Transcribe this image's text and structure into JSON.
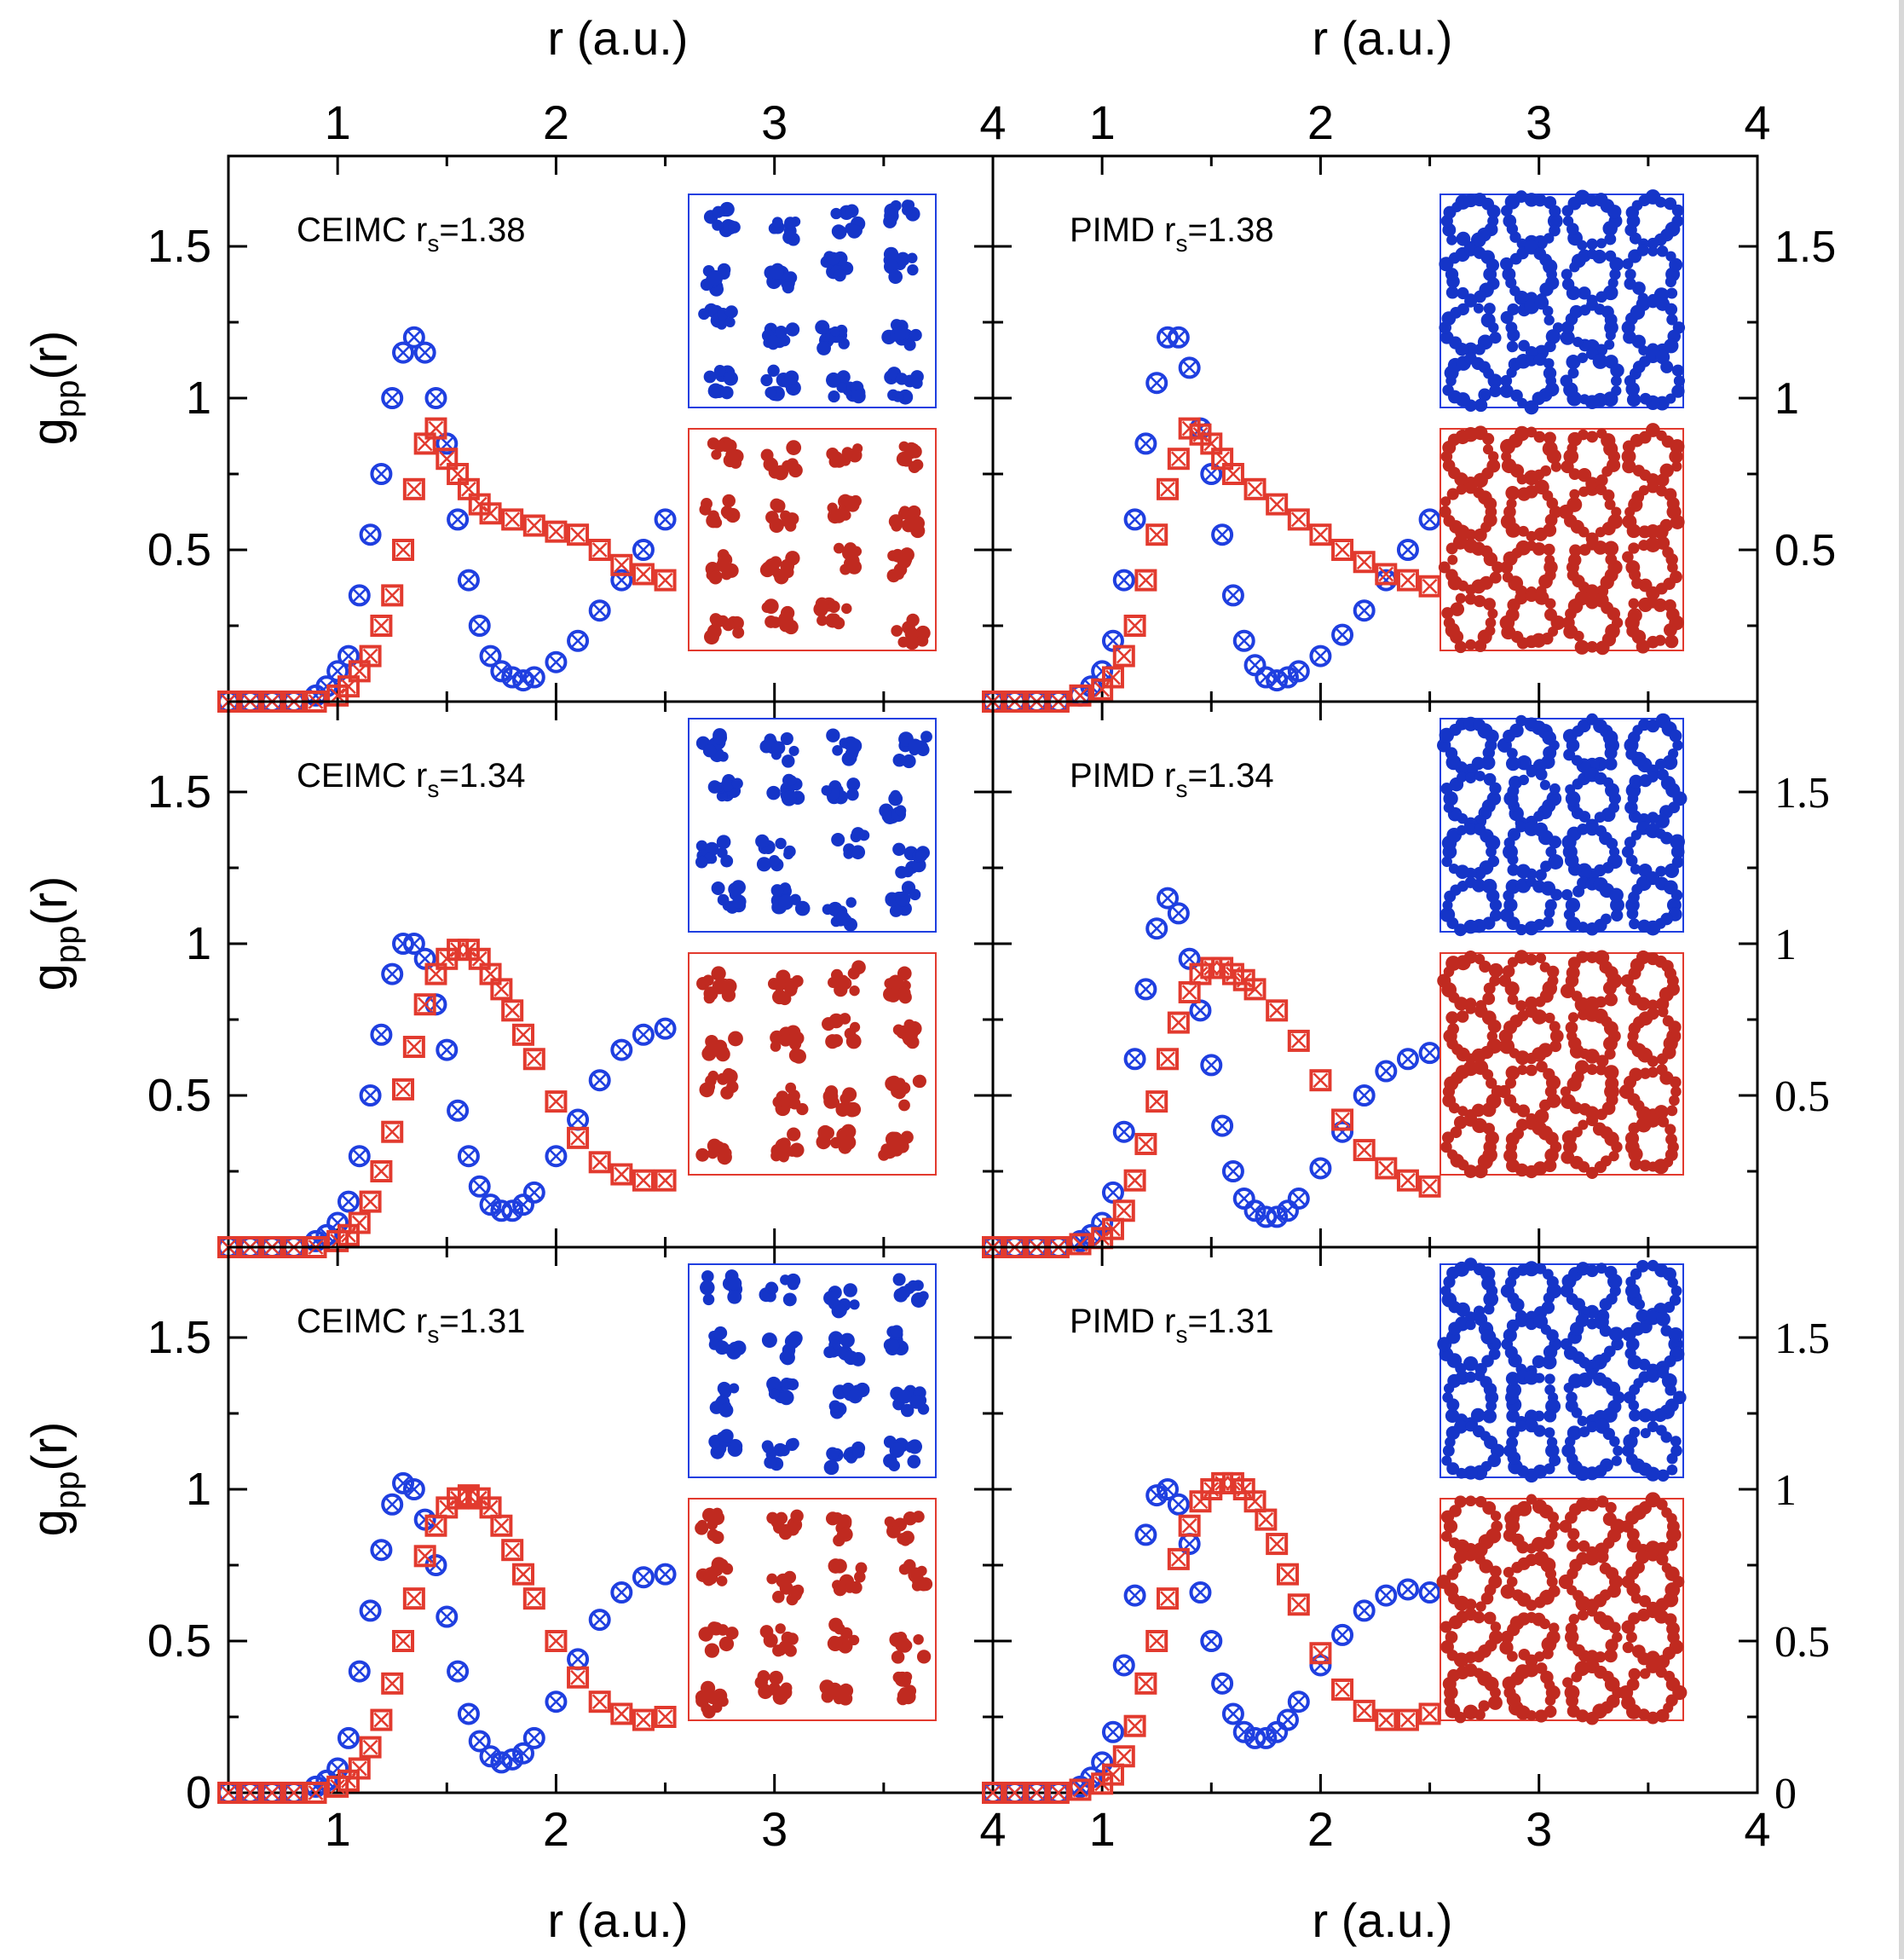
{
  "figure": {
    "top_axis_label": "r (a.u.)",
    "bottom_axis_label": "r (a.u.)",
    "left_axis_label_main": "g",
    "left_axis_label_sub": "pp",
    "left_axis_label_tail": "(r)",
    "colors": {
      "blue": "#1f3fe0",
      "red": "#e23a2e",
      "blue_inset": "#1535c8",
      "red_inset": "#c02a20",
      "frame": "#000000"
    }
  },
  "chart_data": [
    {
      "id": "ceimc-138",
      "type": "scatter",
      "label_main": "CEIMC r",
      "label_sub": "s",
      "label_tail": "=1.38",
      "xlim": [
        0.5,
        4.0
      ],
      "ylim": [
        0,
        1.6
      ],
      "xticks": [
        "1",
        "2",
        "3",
        "4"
      ],
      "yticks": [
        "0.5",
        "1",
        "1.5"
      ],
      "inset_layout": "grid",
      "series": [
        {
          "marker": "circle",
          "color": "#1f3fe0",
          "x": [
            0.5,
            0.6,
            0.7,
            0.8,
            0.9,
            0.95,
            1.0,
            1.05,
            1.1,
            1.15,
            1.2,
            1.25,
            1.3,
            1.35,
            1.4,
            1.45,
            1.5,
            1.55,
            1.6,
            1.65,
            1.7,
            1.75,
            1.8,
            1.85,
            1.9,
            2.0,
            2.1,
            2.2,
            2.3,
            2.4,
            2.5
          ],
          "y": [
            0,
            0,
            0,
            0,
            0.02,
            0.05,
            0.1,
            0.15,
            0.35,
            0.55,
            0.75,
            1.0,
            1.15,
            1.2,
            1.15,
            1.0,
            0.85,
            0.6,
            0.4,
            0.25,
            0.15,
            0.1,
            0.08,
            0.07,
            0.08,
            0.13,
            0.2,
            0.3,
            0.4,
            0.5,
            0.6
          ]
        },
        {
          "marker": "square",
          "color": "#e23a2e",
          "x": [
            0.5,
            0.6,
            0.7,
            0.8,
            0.9,
            1.0,
            1.05,
            1.1,
            1.15,
            1.2,
            1.25,
            1.3,
            1.35,
            1.4,
            1.45,
            1.5,
            1.55,
            1.6,
            1.65,
            1.7,
            1.8,
            1.9,
            2.0,
            2.1,
            2.2,
            2.3,
            2.4,
            2.5
          ],
          "y": [
            0,
            0,
            0,
            0,
            0,
            0.02,
            0.05,
            0.1,
            0.15,
            0.25,
            0.35,
            0.5,
            0.7,
            0.85,
            0.9,
            0.8,
            0.75,
            0.7,
            0.65,
            0.62,
            0.6,
            0.58,
            0.56,
            0.55,
            0.5,
            0.45,
            0.42,
            0.4
          ]
        }
      ]
    },
    {
      "id": "pimd-138",
      "type": "scatter",
      "label_main": "PIMD r",
      "label_sub": "s",
      "label_tail": "=1.38",
      "xlim": [
        0.5,
        4.0
      ],
      "ylim": [
        0,
        1.6
      ],
      "xticks": [
        "1",
        "2",
        "3",
        "4"
      ],
      "yticks": [
        "0.5",
        "1",
        "1.5"
      ],
      "inset_layout": "rings",
      "series": [
        {
          "marker": "circle",
          "color": "#1f3fe0",
          "x": [
            0.5,
            0.6,
            0.7,
            0.8,
            0.9,
            0.95,
            1.0,
            1.05,
            1.1,
            1.15,
            1.2,
            1.25,
            1.3,
            1.35,
            1.4,
            1.45,
            1.5,
            1.55,
            1.6,
            1.65,
            1.7,
            1.75,
            1.8,
            1.85,
            1.9,
            2.0,
            2.1,
            2.2,
            2.3,
            2.4,
            2.5
          ],
          "y": [
            0,
            0,
            0,
            0,
            0.02,
            0.05,
            0.1,
            0.2,
            0.4,
            0.6,
            0.85,
            1.05,
            1.2,
            1.2,
            1.1,
            0.9,
            0.75,
            0.55,
            0.35,
            0.2,
            0.12,
            0.08,
            0.07,
            0.08,
            0.1,
            0.15,
            0.22,
            0.3,
            0.4,
            0.5,
            0.6
          ]
        },
        {
          "marker": "square",
          "color": "#e23a2e",
          "x": [
            0.5,
            0.6,
            0.7,
            0.8,
            0.9,
            1.0,
            1.05,
            1.1,
            1.15,
            1.2,
            1.25,
            1.3,
            1.35,
            1.4,
            1.45,
            1.5,
            1.55,
            1.6,
            1.7,
            1.8,
            1.9,
            2.0,
            2.1,
            2.2,
            2.3,
            2.4,
            2.5
          ],
          "y": [
            0,
            0,
            0,
            0,
            0.02,
            0.04,
            0.08,
            0.15,
            0.25,
            0.4,
            0.55,
            0.7,
            0.8,
            0.9,
            0.88,
            0.85,
            0.8,
            0.75,
            0.7,
            0.65,
            0.6,
            0.55,
            0.5,
            0.46,
            0.42,
            0.4,
            0.38
          ]
        }
      ]
    },
    {
      "id": "ceimc-134",
      "type": "scatter",
      "label_main": "CEIMC r",
      "label_sub": "s",
      "label_tail": "=1.34",
      "xlim": [
        0.5,
        4.0
      ],
      "ylim": [
        0,
        1.6
      ],
      "xticks": [],
      "yticks": [
        "0.5",
        "1",
        "1.5"
      ],
      "inset_layout": "grid",
      "series": [
        {
          "marker": "circle",
          "color": "#1f3fe0",
          "x": [
            0.5,
            0.6,
            0.7,
            0.8,
            0.9,
            0.95,
            1.0,
            1.05,
            1.1,
            1.15,
            1.2,
            1.25,
            1.3,
            1.35,
            1.4,
            1.45,
            1.5,
            1.55,
            1.6,
            1.65,
            1.7,
            1.75,
            1.8,
            1.85,
            1.9,
            2.0,
            2.1,
            2.2,
            2.3,
            2.4,
            2.5
          ],
          "y": [
            0,
            0,
            0,
            0,
            0.02,
            0.04,
            0.08,
            0.15,
            0.3,
            0.5,
            0.7,
            0.9,
            1.0,
            1.0,
            0.95,
            0.8,
            0.65,
            0.45,
            0.3,
            0.2,
            0.14,
            0.12,
            0.12,
            0.14,
            0.18,
            0.3,
            0.42,
            0.55,
            0.65,
            0.7,
            0.72
          ]
        },
        {
          "marker": "square",
          "color": "#e23a2e",
          "x": [
            0.5,
            0.6,
            0.7,
            0.8,
            0.9,
            1.0,
            1.05,
            1.1,
            1.15,
            1.2,
            1.25,
            1.3,
            1.35,
            1.4,
            1.45,
            1.5,
            1.55,
            1.6,
            1.65,
            1.7,
            1.75,
            1.8,
            1.85,
            1.9,
            2.0,
            2.1,
            2.2,
            2.3,
            2.4,
            2.5
          ],
          "y": [
            0,
            0,
            0,
            0,
            0,
            0.02,
            0.04,
            0.08,
            0.15,
            0.25,
            0.38,
            0.52,
            0.66,
            0.8,
            0.9,
            0.95,
            0.98,
            0.98,
            0.95,
            0.9,
            0.85,
            0.78,
            0.7,
            0.62,
            0.48,
            0.36,
            0.28,
            0.24,
            0.22,
            0.22
          ]
        }
      ]
    },
    {
      "id": "pimd-134",
      "type": "scatter",
      "label_main": "PIMD r",
      "label_sub": "s",
      "label_tail": "=1.34",
      "xlim": [
        0.5,
        4.0
      ],
      "ylim": [
        0,
        1.6
      ],
      "xticks": [],
      "yticks": [
        "0.5",
        "1",
        "1.5"
      ],
      "inset_layout": "rings",
      "series": [
        {
          "marker": "circle",
          "color": "#1f3fe0",
          "x": [
            0.5,
            0.6,
            0.7,
            0.8,
            0.9,
            0.95,
            1.0,
            1.05,
            1.1,
            1.15,
            1.2,
            1.25,
            1.3,
            1.35,
            1.4,
            1.45,
            1.5,
            1.55,
            1.6,
            1.65,
            1.7,
            1.75,
            1.8,
            1.85,
            1.9,
            2.0,
            2.1,
            2.2,
            2.3,
            2.4,
            2.5
          ],
          "y": [
            0,
            0,
            0,
            0,
            0.02,
            0.04,
            0.08,
            0.18,
            0.38,
            0.62,
            0.85,
            1.05,
            1.15,
            1.1,
            0.95,
            0.78,
            0.6,
            0.4,
            0.25,
            0.16,
            0.12,
            0.1,
            0.1,
            0.12,
            0.16,
            0.26,
            0.38,
            0.5,
            0.58,
            0.62,
            0.64
          ]
        },
        {
          "marker": "square",
          "color": "#e23a2e",
          "x": [
            0.5,
            0.6,
            0.7,
            0.8,
            0.9,
            1.0,
            1.05,
            1.1,
            1.15,
            1.2,
            1.25,
            1.3,
            1.35,
            1.4,
            1.45,
            1.5,
            1.55,
            1.6,
            1.65,
            1.7,
            1.8,
            1.9,
            2.0,
            2.1,
            2.2,
            2.3,
            2.4,
            2.5
          ],
          "y": [
            0,
            0,
            0,
            0,
            0.01,
            0.03,
            0.06,
            0.12,
            0.22,
            0.34,
            0.48,
            0.62,
            0.74,
            0.84,
            0.9,
            0.92,
            0.92,
            0.9,
            0.88,
            0.85,
            0.78,
            0.68,
            0.55,
            0.42,
            0.32,
            0.26,
            0.22,
            0.2
          ]
        }
      ]
    },
    {
      "id": "ceimc-131",
      "type": "scatter",
      "label_main": "CEIMC r",
      "label_sub": "s",
      "label_tail": "=1.31",
      "xlim": [
        0.5,
        4.0
      ],
      "ylim": [
        0,
        1.6
      ],
      "xticks": [
        "1",
        "2",
        "3",
        "4"
      ],
      "yticks": [
        "0",
        "0.5",
        "1",
        "1.5"
      ],
      "inset_layout": "grid",
      "series": [
        {
          "marker": "circle",
          "color": "#1f3fe0",
          "x": [
            0.5,
            0.6,
            0.7,
            0.8,
            0.9,
            0.95,
            1.0,
            1.05,
            1.1,
            1.15,
            1.2,
            1.25,
            1.3,
            1.35,
            1.4,
            1.45,
            1.5,
            1.55,
            1.6,
            1.65,
            1.7,
            1.75,
            1.8,
            1.85,
            1.9,
            2.0,
            2.1,
            2.2,
            2.3,
            2.4,
            2.5
          ],
          "y": [
            0,
            0,
            0,
            0,
            0.02,
            0.04,
            0.08,
            0.18,
            0.4,
            0.6,
            0.8,
            0.95,
            1.02,
            1.0,
            0.9,
            0.75,
            0.58,
            0.4,
            0.26,
            0.17,
            0.12,
            0.1,
            0.11,
            0.13,
            0.18,
            0.3,
            0.44,
            0.57,
            0.66,
            0.71,
            0.72
          ]
        },
        {
          "marker": "square",
          "color": "#e23a2e",
          "x": [
            0.5,
            0.6,
            0.7,
            0.8,
            0.9,
            1.0,
            1.05,
            1.1,
            1.15,
            1.2,
            1.25,
            1.3,
            1.35,
            1.4,
            1.45,
            1.5,
            1.55,
            1.6,
            1.65,
            1.7,
            1.75,
            1.8,
            1.85,
            1.9,
            2.0,
            2.1,
            2.2,
            2.3,
            2.4,
            2.5
          ],
          "y": [
            0,
            0,
            0,
            0,
            0,
            0.02,
            0.04,
            0.08,
            0.15,
            0.24,
            0.36,
            0.5,
            0.64,
            0.78,
            0.88,
            0.94,
            0.97,
            0.98,
            0.97,
            0.94,
            0.88,
            0.8,
            0.72,
            0.64,
            0.5,
            0.38,
            0.3,
            0.26,
            0.24,
            0.25
          ]
        }
      ]
    },
    {
      "id": "pimd-131",
      "type": "scatter",
      "label_main": "PIMD r",
      "label_sub": "s",
      "label_tail": "=1.31",
      "xlim": [
        0.5,
        4.0
      ],
      "ylim": [
        0,
        1.6
      ],
      "xticks": [
        "1",
        "2",
        "3",
        "4"
      ],
      "yticks": [
        "0",
        "0.5",
        "1",
        "1.5"
      ],
      "inset_layout": "rings",
      "series": [
        {
          "marker": "circle",
          "color": "#1f3fe0",
          "x": [
            0.5,
            0.6,
            0.7,
            0.8,
            0.9,
            0.95,
            1.0,
            1.05,
            1.1,
            1.15,
            1.2,
            1.25,
            1.3,
            1.35,
            1.4,
            1.45,
            1.5,
            1.55,
            1.6,
            1.65,
            1.7,
            1.75,
            1.8,
            1.85,
            1.9,
            2.0,
            2.1,
            2.2,
            2.3,
            2.4,
            2.5
          ],
          "y": [
            0,
            0,
            0,
            0,
            0.02,
            0.05,
            0.1,
            0.2,
            0.42,
            0.65,
            0.85,
            0.98,
            1.0,
            0.95,
            0.82,
            0.66,
            0.5,
            0.36,
            0.26,
            0.2,
            0.18,
            0.18,
            0.2,
            0.24,
            0.3,
            0.42,
            0.52,
            0.6,
            0.65,
            0.67,
            0.66
          ]
        },
        {
          "marker": "square",
          "color": "#e23a2e",
          "x": [
            0.5,
            0.6,
            0.7,
            0.8,
            0.9,
            1.0,
            1.05,
            1.1,
            1.15,
            1.2,
            1.25,
            1.3,
            1.35,
            1.4,
            1.45,
            1.5,
            1.55,
            1.6,
            1.65,
            1.7,
            1.75,
            1.8,
            1.85,
            1.9,
            2.0,
            2.1,
            2.2,
            2.3,
            2.4,
            2.5
          ],
          "y": [
            0,
            0,
            0,
            0,
            0.01,
            0.03,
            0.06,
            0.12,
            0.22,
            0.36,
            0.5,
            0.64,
            0.77,
            0.88,
            0.96,
            1.0,
            1.02,
            1.02,
            1.0,
            0.96,
            0.9,
            0.82,
            0.72,
            0.62,
            0.46,
            0.34,
            0.27,
            0.24,
            0.24,
            0.26
          ]
        }
      ]
    }
  ]
}
